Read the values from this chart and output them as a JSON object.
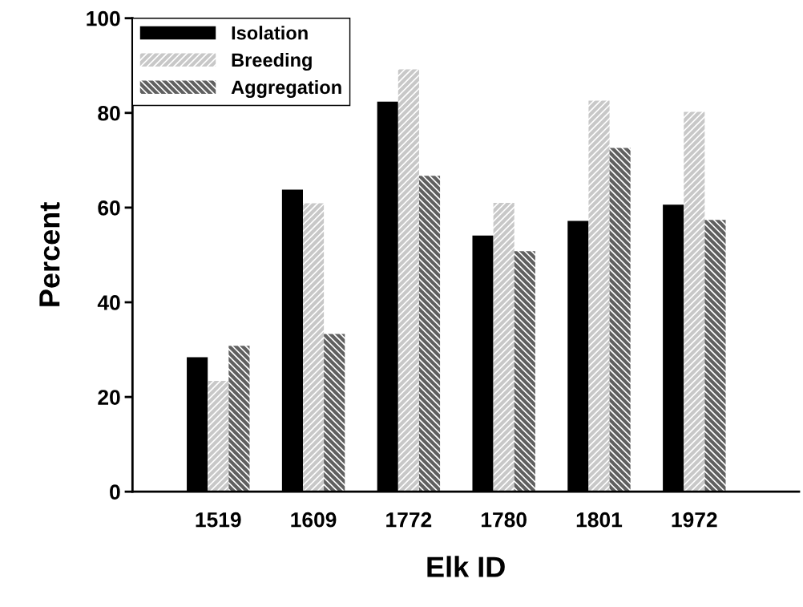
{
  "chart_data": {
    "type": "bar",
    "xlabel": "Elk ID",
    "ylabel": "Percent",
    "categories": [
      "1519",
      "1609",
      "1772",
      "1780",
      "1801",
      "1972"
    ],
    "series": [
      {
        "name": "Isolation",
        "color": "#000000",
        "values": [
          28.4,
          63.8,
          82.4,
          54.1,
          57.2,
          60.6
        ]
      },
      {
        "name": "Breeding",
        "color": "#c8c8c8",
        "values": [
          23.4,
          60.9,
          89.2,
          61.0,
          82.6,
          80.2
        ]
      },
      {
        "name": "Aggregation",
        "color": "#606060",
        "values": [
          30.8,
          33.3,
          66.7,
          50.8,
          72.6,
          57.4
        ]
      }
    ],
    "ylim": [
      0,
      100
    ],
    "yticks": [
      0,
      20,
      40,
      60,
      80,
      100
    ],
    "grid": false,
    "legend": "top left"
  }
}
